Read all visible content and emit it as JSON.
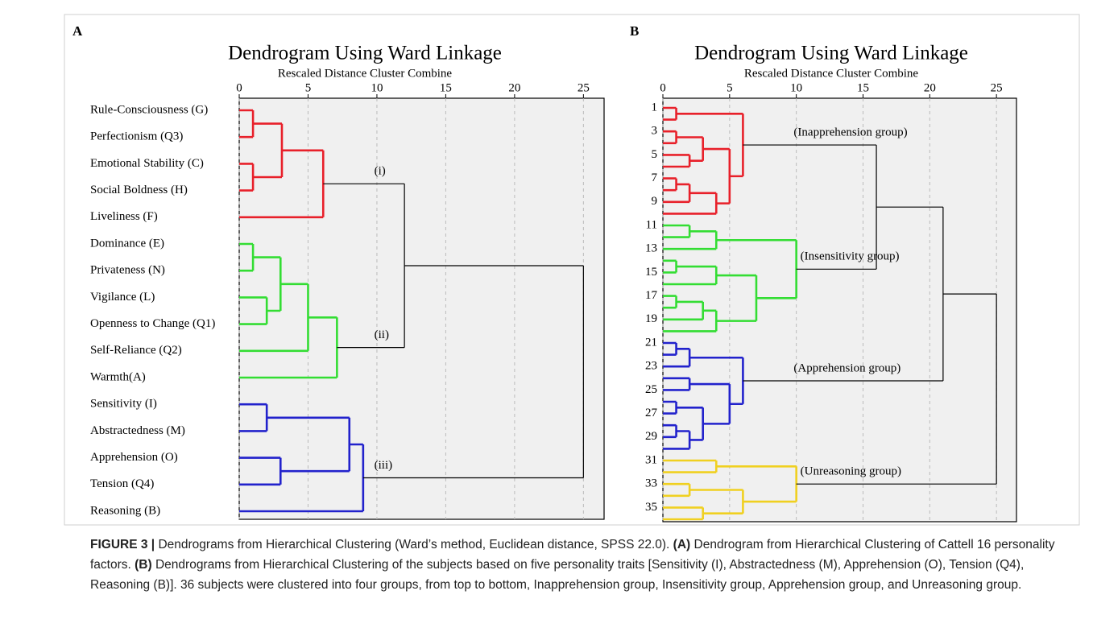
{
  "chart_data": [
    {
      "type": "dendrogram",
      "panel_label": "A",
      "title": "Dendrogram Using Ward Linkage",
      "subtitle": "Rescaled Distance Cluster Combine",
      "xlim": [
        0,
        26.5
      ],
      "xticks": [
        0,
        5,
        10,
        15,
        20,
        25
      ],
      "grid": true,
      "leaves": [
        "Rule-Consciousness (G)",
        "Perfectionism (Q3)",
        "Emotional Stability (C)",
        "Social Boldness (H)",
        "Liveliness (F)",
        "Dominance (E)",
        "Privateness (N)",
        "Vigilance (L)",
        "Openness to Change (Q1)",
        "Self-Reliance (Q2)",
        "Warmth(A)",
        "Sensitivity (I)",
        "Abstractedness (M)",
        "Apprehension (O)",
        "Tension (Q4)",
        "Reasoning (B)"
      ],
      "merges": [
        {
          "children": [
            0,
            1
          ],
          "height": 1,
          "color": "#e8202a"
        },
        {
          "children": [
            2,
            3
          ],
          "height": 1,
          "color": "#e8202a"
        },
        {
          "children": [
            16,
            17
          ],
          "height": 3.1,
          "color": "#e8202a"
        },
        {
          "children": [
            18,
            4
          ],
          "height": 6.1,
          "color": "#e8202a",
          "label": "(i)"
        },
        {
          "children": [
            5,
            6
          ],
          "height": 1,
          "color": "#33dd33"
        },
        {
          "children": [
            7,
            8
          ],
          "height": 2,
          "color": "#33dd33"
        },
        {
          "children": [
            20,
            21
          ],
          "height": 3,
          "color": "#33dd33"
        },
        {
          "children": [
            22,
            9
          ],
          "height": 5,
          "color": "#33dd33"
        },
        {
          "children": [
            23,
            10
          ],
          "height": 7.1,
          "color": "#33dd33",
          "label": "(ii)"
        },
        {
          "children": [
            19,
            24
          ],
          "height": 12,
          "color": "#000000"
        },
        {
          "children": [
            11,
            12
          ],
          "height": 2,
          "color": "#2222cc"
        },
        {
          "children": [
            13,
            14
          ],
          "height": 3,
          "color": "#2222cc"
        },
        {
          "children": [
            26,
            27
          ],
          "height": 8,
          "color": "#2222cc"
        },
        {
          "children": [
            28,
            15
          ],
          "height": 9,
          "color": "#2222cc",
          "label": "(iii)"
        },
        {
          "children": [
            25,
            29
          ],
          "height": 25,
          "color": "#000000"
        }
      ]
    },
    {
      "type": "dendrogram",
      "panel_label": "B",
      "title": "Dendrogram Using Ward Linkage",
      "subtitle": "Rescaled Distance Cluster Combine",
      "xlim": [
        0,
        26.5
      ],
      "xticks": [
        0,
        5,
        10,
        15,
        20,
        25
      ],
      "grid": true,
      "leaves": [
        "1",
        null,
        "3",
        null,
        "5",
        null,
        "7",
        null,
        "9",
        null,
        "11",
        null,
        "13",
        null,
        "15",
        null,
        "17",
        null,
        "19",
        null,
        "21",
        null,
        "23",
        null,
        "25",
        null,
        "27",
        null,
        "29",
        null,
        "31",
        null,
        "33",
        null,
        "35",
        null
      ],
      "merges": [
        {
          "children": [
            0,
            1
          ],
          "height": 1,
          "color": "#e8202a"
        },
        {
          "children": [
            2,
            3
          ],
          "height": 1,
          "color": "#e8202a"
        },
        {
          "children": [
            4,
            5
          ],
          "height": 2,
          "color": "#e8202a"
        },
        {
          "children": [
            37,
            38
          ],
          "height": 3,
          "color": "#e8202a"
        },
        {
          "children": [
            6,
            7
          ],
          "height": 1,
          "color": "#e8202a"
        },
        {
          "children": [
            40,
            8
          ],
          "height": 2,
          "color": "#e8202a"
        },
        {
          "children": [
            41,
            9
          ],
          "height": 4,
          "color": "#e8202a"
        },
        {
          "children": [
            39,
            42
          ],
          "height": 5,
          "color": "#e8202a"
        },
        {
          "children": [
            36,
            43
          ],
          "height": 6,
          "color": "#e8202a",
          "label": "(Inapprehension group)"
        },
        {
          "children": [
            10,
            11
          ],
          "height": 2,
          "color": "#33dd33"
        },
        {
          "children": [
            45,
            12
          ],
          "height": 4,
          "color": "#33dd33"
        },
        {
          "children": [
            13,
            14
          ],
          "height": 1,
          "color": "#33dd33"
        },
        {
          "children": [
            47,
            15
          ],
          "height": 4,
          "color": "#33dd33"
        },
        {
          "children": [
            16,
            17
          ],
          "height": 1,
          "color": "#33dd33"
        },
        {
          "children": [
            49,
            18
          ],
          "height": 3,
          "color": "#33dd33"
        },
        {
          "children": [
            50,
            19
          ],
          "height": 4,
          "color": "#33dd33"
        },
        {
          "children": [
            48,
            51
          ],
          "height": 7,
          "color": "#33dd33"
        },
        {
          "children": [
            46,
            52
          ],
          "height": 10,
          "color": "#33dd33",
          "label": "(Insensitivity group)"
        },
        {
          "children": [
            44,
            53
          ],
          "height": 16,
          "color": "#000000"
        },
        {
          "children": [
            20,
            21
          ],
          "height": 1,
          "color": "#2222cc"
        },
        {
          "children": [
            55,
            22
          ],
          "height": 2,
          "color": "#2222cc"
        },
        {
          "children": [
            23,
            24
          ],
          "height": 2,
          "color": "#2222cc"
        },
        {
          "children": [
            25,
            26
          ],
          "height": 1,
          "color": "#2222cc"
        },
        {
          "children": [
            27,
            28
          ],
          "height": 1,
          "color": "#2222cc"
        },
        {
          "children": [
            59,
            29
          ],
          "height": 2,
          "color": "#2222cc"
        },
        {
          "children": [
            58,
            60
          ],
          "height": 3,
          "color": "#2222cc"
        },
        {
          "children": [
            57,
            61
          ],
          "height": 5,
          "color": "#2222cc"
        },
        {
          "children": [
            56,
            62
          ],
          "height": 6,
          "color": "#2222cc",
          "label": "(Apprehension group)"
        },
        {
          "children": [
            54,
            63
          ],
          "height": 21,
          "color": "#000000"
        },
        {
          "children": [
            30,
            31
          ],
          "height": 4,
          "color": "#f0d020"
        },
        {
          "children": [
            32,
            33
          ],
          "height": 2,
          "color": "#f0d020"
        },
        {
          "children": [
            34,
            35
          ],
          "height": 3,
          "color": "#f0d020"
        },
        {
          "children": [
            66,
            67
          ],
          "height": 6,
          "color": "#f0d020"
        },
        {
          "children": [
            65,
            68
          ],
          "height": 10,
          "color": "#f0d020",
          "label": "(Unreasoning group)"
        },
        {
          "children": [
            64,
            69
          ],
          "height": 25,
          "color": "#000000"
        }
      ]
    }
  ],
  "caption": [
    {
      "text": "FIGURE 3 |",
      "bold": true
    },
    {
      "text": " Dendrograms from Hierarchical Clustering (Ward’s method, Euclidean distance, SPSS 22.0). ",
      "bold": false
    },
    {
      "text": "(A)",
      "bold": true
    },
    {
      "text": " Dendrogram from Hierarchical Clustering of Cattell 16 personality factors. ",
      "bold": false
    },
    {
      "text": "(B)",
      "bold": true
    },
    {
      "text": " Dendrograms from Hierarchical Clustering of the subjects based on five personality traits [Sensitivity (I), Abstractedness (M), Apprehension (O), Tension (Q4), Reasoning (B)]. 36 subjects were clustered into four groups, from top to bottom, Inapprehension group, Insensitivity group, Apprehension group, and Unreasoning group.",
      "bold": false
    }
  ]
}
